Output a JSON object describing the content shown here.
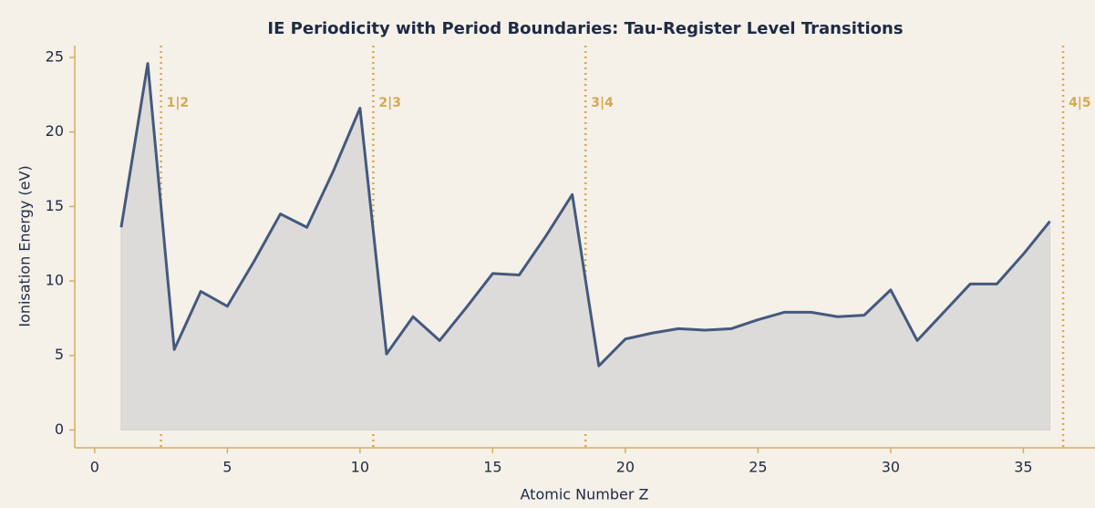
{
  "chart_data": {
    "type": "line",
    "title": "IE Periodicity with Period Boundaries: Tau-Register Level Transitions",
    "xlabel": "Atomic Number Z",
    "ylabel": "Ionisation Energy (eV)",
    "x": [
      1,
      2,
      3,
      4,
      5,
      6,
      7,
      8,
      9,
      10,
      11,
      12,
      13,
      14,
      15,
      16,
      17,
      18,
      19,
      20,
      21,
      22,
      23,
      24,
      25,
      26,
      27,
      28,
      29,
      30,
      31,
      32,
      33,
      34,
      35,
      36
    ],
    "series": [
      {
        "color": "#44597e",
        "fill": "#dddbd9",
        "values": [
          13.6,
          24.6,
          5.4,
          9.3,
          8.3,
          11.3,
          14.5,
          13.6,
          17.4,
          21.6,
          5.1,
          7.6,
          6.0,
          8.2,
          10.5,
          10.4,
          13.0,
          15.8,
          4.3,
          6.1,
          6.5,
          6.8,
          6.7,
          6.8,
          7.4,
          7.9,
          7.9,
          7.6,
          7.7,
          9.4,
          6.0,
          7.9,
          9.8,
          9.8,
          11.8,
          14.0
        ]
      }
    ],
    "boundaries": [
      {
        "x": 2.5,
        "label": "1|2"
      },
      {
        "x": 10.5,
        "label": "2|3"
      },
      {
        "x": 18.5,
        "label": "3|4"
      },
      {
        "x": 36.5,
        "label": "4|5"
      }
    ],
    "boundary_color": "#d4aa50",
    "xlim": [
      -0.75,
      37.7
    ],
    "xticks": [
      0,
      5,
      10,
      15,
      20,
      25,
      30,
      35
    ],
    "ylim": [
      -1.2,
      25.8
    ],
    "yticks": [
      0,
      5,
      10,
      15,
      20,
      25
    ],
    "grid": false
  }
}
